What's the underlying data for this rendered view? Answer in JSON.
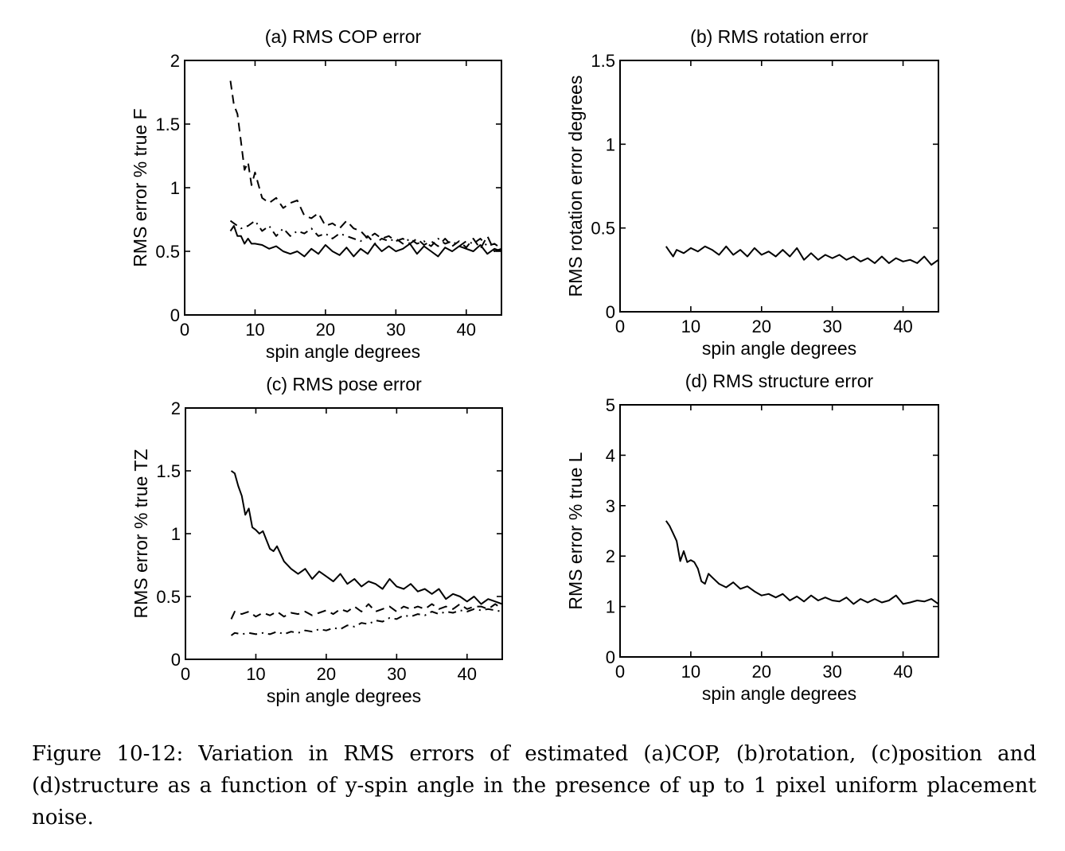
{
  "caption": "Figure 10-12: Variation in RMS errors of estimated (a)COP, (b)rotation, (c)position and (d)structure as a function of y-spin angle in the presence of up to 1 pixel uniform placement noise.",
  "chart_data": [
    {
      "type": "line",
      "title": "(a) RMS COP error",
      "xlabel": "spin angle degrees",
      "ylabel": "RMS error % true F",
      "xlim": [
        0,
        45
      ],
      "ylim": [
        0,
        2
      ],
      "xticks": [
        0,
        10,
        20,
        30,
        40
      ],
      "yticks": [
        0,
        0.5,
        1,
        1.5,
        2
      ],
      "ytick_labels": [
        "0",
        "0.5",
        "1",
        "1.5",
        "2"
      ],
      "grid": false,
      "series": [
        {
          "style": "dashed",
          "x": [
            6.5,
            7,
            7.5,
            8,
            8.5,
            9,
            9.5,
            10,
            11,
            12,
            13,
            14,
            15,
            16,
            17,
            18,
            19,
            20,
            21,
            22,
            23,
            24,
            25,
            26,
            27,
            28,
            29,
            30,
            31,
            32,
            33,
            34,
            35,
            36,
            37,
            38,
            39,
            40,
            41,
            42,
            43,
            44,
            45
          ],
          "y": [
            1.84,
            1.65,
            1.58,
            1.36,
            1.14,
            1.2,
            1.02,
            1.12,
            0.92,
            0.88,
            0.92,
            0.84,
            0.88,
            0.9,
            0.78,
            0.76,
            0.8,
            0.7,
            0.72,
            0.68,
            0.74,
            0.68,
            0.66,
            0.6,
            0.64,
            0.6,
            0.62,
            0.58,
            0.6,
            0.56,
            0.6,
            0.55,
            0.58,
            0.54,
            0.6,
            0.54,
            0.58,
            0.53,
            0.6,
            0.52,
            0.62,
            0.5,
            0.52
          ]
        },
        {
          "style": "dashdot",
          "x": [
            6.5,
            7,
            8,
            9,
            10,
            11,
            12,
            13,
            14,
            15,
            16,
            17,
            18,
            19,
            20,
            21,
            22,
            23,
            24,
            25,
            26,
            27,
            28,
            29,
            30,
            31,
            32,
            33,
            34,
            35,
            36,
            37,
            38,
            39,
            40,
            41,
            42,
            43,
            44,
            45
          ],
          "y": [
            0.74,
            0.72,
            0.68,
            0.7,
            0.74,
            0.66,
            0.7,
            0.62,
            0.68,
            0.62,
            0.66,
            0.64,
            0.68,
            0.62,
            0.64,
            0.6,
            0.64,
            0.62,
            0.6,
            0.58,
            0.62,
            0.56,
            0.6,
            0.58,
            0.6,
            0.56,
            0.6,
            0.56,
            0.58,
            0.54,
            0.6,
            0.56,
            0.58,
            0.54,
            0.58,
            0.56,
            0.6,
            0.54,
            0.56,
            0.52
          ]
        },
        {
          "style": "solid",
          "x": [
            6.5,
            7,
            7.5,
            8,
            8.5,
            9,
            9.5,
            10,
            11,
            12,
            13,
            14,
            15,
            16,
            17,
            18,
            19,
            20,
            21,
            22,
            23,
            24,
            25,
            26,
            27,
            28,
            29,
            30,
            31,
            32,
            33,
            34,
            35,
            36,
            37,
            38,
            39,
            40,
            41,
            42,
            43,
            44,
            45
          ],
          "y": [
            0.66,
            0.7,
            0.62,
            0.62,
            0.56,
            0.6,
            0.56,
            0.56,
            0.55,
            0.52,
            0.54,
            0.5,
            0.48,
            0.5,
            0.46,
            0.52,
            0.48,
            0.55,
            0.5,
            0.47,
            0.53,
            0.46,
            0.52,
            0.48,
            0.56,
            0.5,
            0.54,
            0.5,
            0.52,
            0.56,
            0.48,
            0.54,
            0.5,
            0.46,
            0.53,
            0.5,
            0.54,
            0.52,
            0.5,
            0.55,
            0.48,
            0.52,
            0.5
          ]
        }
      ]
    },
    {
      "type": "line",
      "title": "(b) RMS rotation error",
      "xlabel": "spin angle degrees",
      "ylabel": "RMS rotation error degrees",
      "xlim": [
        0,
        45
      ],
      "ylim": [
        0,
        1.5
      ],
      "xticks": [
        0,
        10,
        20,
        30,
        40
      ],
      "yticks": [
        0,
        0.5,
        1,
        1.5
      ],
      "ytick_labels": [
        "0",
        "0.5",
        "1",
        "1.5"
      ],
      "grid": false,
      "series": [
        {
          "style": "solid",
          "x": [
            6.5,
            7,
            7.5,
            8,
            9,
            10,
            11,
            12,
            13,
            14,
            15,
            16,
            17,
            18,
            19,
            20,
            21,
            22,
            23,
            24,
            25,
            26,
            27,
            28,
            29,
            30,
            31,
            32,
            33,
            34,
            35,
            36,
            37,
            38,
            39,
            40,
            41,
            42,
            43,
            44,
            45
          ],
          "y": [
            0.39,
            0.36,
            0.33,
            0.37,
            0.35,
            0.38,
            0.36,
            0.39,
            0.37,
            0.34,
            0.39,
            0.34,
            0.37,
            0.33,
            0.38,
            0.34,
            0.36,
            0.33,
            0.37,
            0.33,
            0.38,
            0.31,
            0.35,
            0.31,
            0.34,
            0.32,
            0.34,
            0.31,
            0.33,
            0.3,
            0.32,
            0.29,
            0.33,
            0.29,
            0.32,
            0.3,
            0.31,
            0.29,
            0.33,
            0.28,
            0.31
          ]
        }
      ]
    },
    {
      "type": "line",
      "title": "(c) RMS pose error",
      "xlabel": "spin angle degrees",
      "ylabel": "RMS error % true TZ",
      "xlim": [
        0,
        45
      ],
      "ylim": [
        0,
        2
      ],
      "xticks": [
        0,
        10,
        20,
        30,
        40
      ],
      "yticks": [
        0,
        0.5,
        1,
        1.5,
        2
      ],
      "ytick_labels": [
        "0",
        "0.5",
        "1",
        "1.5",
        "2"
      ],
      "grid": false,
      "series": [
        {
          "style": "solid",
          "x": [
            6.5,
            7,
            7.5,
            8,
            8.5,
            9,
            9.5,
            10,
            10.5,
            11,
            11.5,
            12,
            12.5,
            13,
            14,
            15,
            16,
            17,
            18,
            19,
            20,
            21,
            22,
            23,
            24,
            25,
            26,
            27,
            28,
            29,
            30,
            31,
            32,
            33,
            34,
            35,
            36,
            37,
            38,
            39,
            40,
            41,
            42,
            43,
            44,
            45
          ],
          "y": [
            1.5,
            1.48,
            1.38,
            1.3,
            1.15,
            1.2,
            1.05,
            1.03,
            1.0,
            1.02,
            0.95,
            0.88,
            0.86,
            0.9,
            0.78,
            0.72,
            0.68,
            0.72,
            0.64,
            0.7,
            0.66,
            0.62,
            0.68,
            0.6,
            0.64,
            0.58,
            0.62,
            0.6,
            0.56,
            0.64,
            0.58,
            0.56,
            0.6,
            0.54,
            0.56,
            0.52,
            0.56,
            0.48,
            0.52,
            0.5,
            0.46,
            0.5,
            0.44,
            0.48,
            0.46,
            0.44
          ]
        },
        {
          "style": "dashed",
          "x": [
            6.5,
            7,
            8,
            9,
            10,
            11,
            12,
            13,
            14,
            15,
            16,
            17,
            18,
            19,
            20,
            21,
            22,
            23,
            24,
            25,
            26,
            27,
            28,
            29,
            30,
            31,
            32,
            33,
            34,
            35,
            36,
            37,
            38,
            39,
            40,
            41,
            42,
            43,
            44,
            45
          ],
          "y": [
            0.32,
            0.38,
            0.36,
            0.38,
            0.34,
            0.37,
            0.35,
            0.38,
            0.34,
            0.37,
            0.36,
            0.38,
            0.35,
            0.37,
            0.39,
            0.36,
            0.4,
            0.38,
            0.42,
            0.38,
            0.44,
            0.38,
            0.4,
            0.42,
            0.38,
            0.42,
            0.4,
            0.42,
            0.4,
            0.44,
            0.4,
            0.42,
            0.4,
            0.44,
            0.4,
            0.42,
            0.42,
            0.4,
            0.44,
            0.4
          ]
        },
        {
          "style": "dashdot",
          "x": [
            6.5,
            7,
            8,
            9,
            10,
            11,
            12,
            13,
            14,
            15,
            16,
            17,
            18,
            19,
            20,
            21,
            22,
            23,
            24,
            25,
            26,
            27,
            28,
            29,
            30,
            31,
            32,
            33,
            34,
            35,
            36,
            37,
            38,
            39,
            40,
            41,
            42,
            43,
            44,
            45
          ],
          "y": [
            0.19,
            0.21,
            0.2,
            0.21,
            0.2,
            0.21,
            0.2,
            0.22,
            0.2,
            0.22,
            0.21,
            0.23,
            0.22,
            0.24,
            0.23,
            0.25,
            0.24,
            0.27,
            0.26,
            0.29,
            0.28,
            0.31,
            0.3,
            0.33,
            0.32,
            0.35,
            0.34,
            0.36,
            0.35,
            0.38,
            0.36,
            0.38,
            0.37,
            0.39,
            0.38,
            0.4,
            0.39,
            0.4,
            0.39,
            0.38
          ]
        }
      ]
    },
    {
      "type": "line",
      "title": "(d) RMS structure error",
      "xlabel": "spin angle degrees",
      "ylabel": "RMS error % true L",
      "xlim": [
        0,
        45
      ],
      "ylim": [
        0,
        5
      ],
      "xticks": [
        0,
        10,
        20,
        30,
        40
      ],
      "yticks": [
        0,
        1,
        2,
        3,
        4,
        5
      ],
      "ytick_labels": [
        "0",
        "1",
        "2",
        "3",
        "4",
        "5"
      ],
      "grid": false,
      "series": [
        {
          "style": "solid",
          "x": [
            6.5,
            7,
            7.5,
            8,
            8.5,
            9,
            9.5,
            10,
            10.5,
            11,
            11.5,
            12,
            12.5,
            13,
            14,
            15,
            16,
            17,
            18,
            19,
            20,
            21,
            22,
            23,
            24,
            25,
            26,
            27,
            28,
            29,
            30,
            31,
            32,
            33,
            34,
            35,
            36,
            37,
            38,
            39,
            40,
            41,
            42,
            43,
            44,
            45
          ],
          "y": [
            2.7,
            2.6,
            2.45,
            2.3,
            1.9,
            2.1,
            1.88,
            1.92,
            1.88,
            1.75,
            1.5,
            1.45,
            1.65,
            1.58,
            1.45,
            1.38,
            1.48,
            1.35,
            1.4,
            1.3,
            1.22,
            1.25,
            1.18,
            1.25,
            1.12,
            1.2,
            1.1,
            1.22,
            1.12,
            1.18,
            1.12,
            1.1,
            1.18,
            1.05,
            1.15,
            1.08,
            1.15,
            1.08,
            1.12,
            1.22,
            1.05,
            1.08,
            1.12,
            1.1,
            1.15,
            1.05
          ]
        }
      ]
    }
  ]
}
